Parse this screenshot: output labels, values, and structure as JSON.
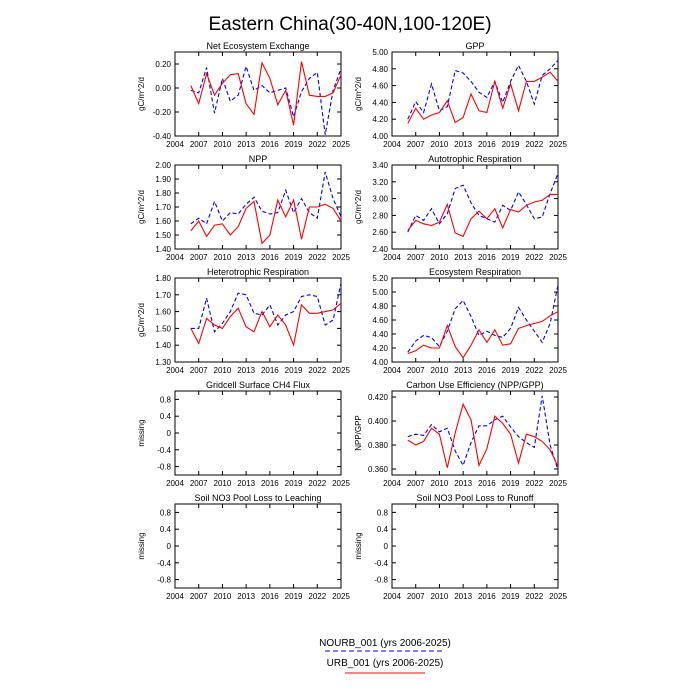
{
  "figure": {
    "title": "Eastern China(30-40N,100-120E)",
    "legend": [
      {
        "label": "NOURB_001 (yrs 2006-2025)",
        "color": "#0000ff",
        "dash": true
      },
      {
        "label": "URB_001 (yrs 2006-2025)",
        "color": "#ff0000",
        "dash": false
      }
    ]
  },
  "chart_data": [
    {
      "type": "line",
      "title": "Net Ecosystem Exchange",
      "ylabel": "gC/m^2/d",
      "xlim": [
        2004,
        2025
      ],
      "ylim": [
        -0.4,
        0.3
      ],
      "xticks": [
        2004,
        2007,
        2010,
        2013,
        2016,
        2019,
        2022,
        2025
      ],
      "yticks": [
        -0.4,
        -0.2,
        0.0,
        0.2
      ],
      "ytick_labels": [
        "-0.40",
        "-0.20",
        "0.00",
        "0.20"
      ],
      "x": [
        2006,
        2007,
        2008,
        2009,
        2010,
        2011,
        2012,
        2013,
        2014,
        2015,
        2016,
        2017,
        2018,
        2019,
        2020,
        2021,
        2022,
        2023,
        2024,
        2025
      ],
      "series": [
        {
          "name": "NOURB_001 (yrs 2006-2025)",
          "color": "#0000ff",
          "dash": true,
          "values": [
            -0.02,
            -0.04,
            0.17,
            -0.21,
            0.08,
            -0.11,
            -0.06,
            0.18,
            -0.02,
            0.02,
            -0.04,
            -0.02,
            0.0,
            -0.24,
            -0.03,
            0.08,
            0.13,
            -0.39,
            -0.02,
            0.16
          ]
        },
        {
          "name": "URB_001 (yrs 2006-2025)",
          "color": "#ff0000",
          "dash": false,
          "values": [
            0.02,
            -0.13,
            0.12,
            -0.06,
            0.04,
            0.11,
            0.12,
            -0.13,
            -0.22,
            0.21,
            0.08,
            -0.14,
            -0.02,
            -0.31,
            0.22,
            -0.06,
            -0.07,
            -0.07,
            -0.04,
            0.11
          ]
        }
      ]
    },
    {
      "type": "line",
      "title": "GPP",
      "ylabel": "gC/m^2/d",
      "xlim": [
        2004,
        2025
      ],
      "ylim": [
        4.0,
        5.0
      ],
      "xticks": [
        2004,
        2007,
        2010,
        2013,
        2016,
        2019,
        2022,
        2025
      ],
      "yticks": [
        4.0,
        4.2,
        4.4,
        4.6,
        4.8,
        5.0
      ],
      "ytick_labels": [
        "4.00",
        "4.20",
        "4.40",
        "4.60",
        "4.80",
        "5.00"
      ],
      "x": [
        2006,
        2007,
        2008,
        2009,
        2010,
        2011,
        2012,
        2013,
        2014,
        2015,
        2016,
        2017,
        2018,
        2019,
        2020,
        2021,
        2022,
        2023,
        2024,
        2025
      ],
      "series": [
        {
          "name": "NOURB_001 (yrs 2006-2025)",
          "color": "#0000ff",
          "dash": true,
          "values": [
            4.2,
            4.41,
            4.28,
            4.62,
            4.3,
            4.35,
            4.78,
            4.75,
            4.65,
            4.52,
            4.46,
            4.65,
            4.4,
            4.65,
            4.84,
            4.65,
            4.38,
            4.72,
            4.8,
            4.9
          ]
        },
        {
          "name": "URB_001 (yrs 2006-2025)",
          "color": "#ff0000",
          "dash": false,
          "values": [
            4.15,
            4.33,
            4.2,
            4.25,
            4.28,
            4.42,
            4.16,
            4.22,
            4.5,
            4.3,
            4.28,
            4.65,
            4.33,
            4.62,
            4.3,
            4.65,
            4.65,
            4.7,
            4.76,
            4.65
          ]
        }
      ]
    },
    {
      "type": "line",
      "title": "NPP",
      "ylabel": "gC/m^2/d",
      "xlim": [
        2004,
        2025
      ],
      "ylim": [
        1.4,
        2.0
      ],
      "xticks": [
        2004,
        2007,
        2010,
        2013,
        2016,
        2019,
        2022,
        2025
      ],
      "yticks": [
        1.4,
        1.5,
        1.6,
        1.7,
        1.8,
        1.9,
        2.0
      ],
      "ytick_labels": [
        "1.40",
        "1.50",
        "1.60",
        "1.70",
        "1.80",
        "1.90",
        "2.00"
      ],
      "x": [
        2006,
        2007,
        2008,
        2009,
        2010,
        2011,
        2012,
        2013,
        2014,
        2015,
        2016,
        2017,
        2018,
        2019,
        2020,
        2021,
        2022,
        2023,
        2024,
        2025
      ],
      "series": [
        {
          "name": "NOURB_001 (yrs 2006-2025)",
          "color": "#0000ff",
          "dash": true,
          "values": [
            1.58,
            1.62,
            1.58,
            1.74,
            1.6,
            1.66,
            1.65,
            1.72,
            1.77,
            1.67,
            1.65,
            1.66,
            1.82,
            1.66,
            1.76,
            1.66,
            1.62,
            1.95,
            1.76,
            1.63
          ]
        },
        {
          "name": "URB_001 (yrs 2006-2025)",
          "color": "#ff0000",
          "dash": false,
          "values": [
            1.53,
            1.6,
            1.49,
            1.57,
            1.58,
            1.5,
            1.56,
            1.69,
            1.74,
            1.44,
            1.5,
            1.75,
            1.63,
            1.75,
            1.47,
            1.7,
            1.7,
            1.72,
            1.69,
            1.6
          ]
        }
      ]
    },
    {
      "type": "line",
      "title": "Autotrophic Respiration",
      "ylabel": "gC/m^2/d",
      "xlim": [
        2004,
        2025
      ],
      "ylim": [
        2.4,
        3.4
      ],
      "xticks": [
        2004,
        2007,
        2010,
        2013,
        2016,
        2019,
        2022,
        2025
      ],
      "yticks": [
        2.4,
        2.6,
        2.8,
        3.0,
        3.2,
        3.4
      ],
      "ytick_labels": [
        "2.40",
        "2.60",
        "2.80",
        "3.00",
        "3.20",
        "3.40"
      ],
      "x": [
        2006,
        2007,
        2008,
        2009,
        2010,
        2011,
        2012,
        2013,
        2014,
        2015,
        2016,
        2017,
        2018,
        2019,
        2020,
        2021,
        2022,
        2023,
        2024,
        2025
      ],
      "series": [
        {
          "name": "NOURB_001 (yrs 2006-2025)",
          "color": "#0000ff",
          "dash": true,
          "values": [
            2.6,
            2.8,
            2.74,
            2.88,
            2.7,
            2.82,
            3.12,
            3.16,
            2.95,
            2.8,
            2.76,
            2.72,
            2.92,
            2.86,
            3.08,
            2.93,
            2.76,
            2.78,
            3.06,
            3.3
          ]
        },
        {
          "name": "URB_001 (yrs 2006-2025)",
          "color": "#ff0000",
          "dash": false,
          "values": [
            2.62,
            2.74,
            2.7,
            2.68,
            2.72,
            2.93,
            2.59,
            2.55,
            2.76,
            2.85,
            2.76,
            2.88,
            2.65,
            2.87,
            2.84,
            2.92,
            2.96,
            2.98,
            3.05,
            3.05
          ]
        }
      ]
    },
    {
      "type": "line",
      "title": "Heterotrophic Respiration",
      "ylabel": "gC/m^2/d",
      "xlim": [
        2004,
        2025
      ],
      "ylim": [
        1.3,
        1.8
      ],
      "xticks": [
        2004,
        2007,
        2010,
        2013,
        2016,
        2019,
        2022,
        2025
      ],
      "yticks": [
        1.3,
        1.4,
        1.5,
        1.6,
        1.7,
        1.8
      ],
      "ytick_labels": [
        "1.30",
        "1.40",
        "1.50",
        "1.60",
        "1.70",
        "1.80"
      ],
      "x": [
        2006,
        2007,
        2008,
        2009,
        2010,
        2011,
        2012,
        2013,
        2014,
        2015,
        2016,
        2017,
        2018,
        2019,
        2020,
        2021,
        2022,
        2023,
        2024,
        2025
      ],
      "series": [
        {
          "name": "NOURB_001 (yrs 2006-2025)",
          "color": "#0000ff",
          "dash": true,
          "values": [
            1.5,
            1.5,
            1.68,
            1.48,
            1.53,
            1.6,
            1.71,
            1.7,
            1.59,
            1.58,
            1.64,
            1.52,
            1.58,
            1.6,
            1.69,
            1.7,
            1.69,
            1.52,
            1.55,
            1.77
          ]
        },
        {
          "name": "URB_001 (yrs 2006-2025)",
          "color": "#ff0000",
          "dash": false,
          "values": [
            1.5,
            1.41,
            1.56,
            1.52,
            1.5,
            1.57,
            1.62,
            1.51,
            1.48,
            1.6,
            1.51,
            1.58,
            1.52,
            1.4,
            1.64,
            1.59,
            1.59,
            1.6,
            1.61,
            1.65
          ]
        }
      ]
    },
    {
      "type": "line",
      "title": "Ecosystem Respiration",
      "ylabel": "",
      "xlim": [
        2004,
        2025
      ],
      "ylim": [
        4.0,
        5.2
      ],
      "xticks": [
        2004,
        2007,
        2010,
        2013,
        2016,
        2019,
        2022,
        2025
      ],
      "yticks": [
        4.0,
        4.2,
        4.4,
        4.6,
        4.8,
        5.0,
        5.2
      ],
      "ytick_labels": [
        "4.00",
        "4.20",
        "4.40",
        "4.60",
        "4.80",
        "5.00",
        "5.20"
      ],
      "x": [
        2006,
        2007,
        2008,
        2009,
        2010,
        2011,
        2012,
        2013,
        2014,
        2015,
        2016,
        2017,
        2018,
        2019,
        2020,
        2021,
        2022,
        2023,
        2024,
        2025
      ],
      "series": [
        {
          "name": "NOURB_001 (yrs 2006-2025)",
          "color": "#0000ff",
          "dash": true,
          "values": [
            4.14,
            4.3,
            4.38,
            4.35,
            4.22,
            4.44,
            4.76,
            4.88,
            4.65,
            4.38,
            4.44,
            4.38,
            4.35,
            4.48,
            4.78,
            4.6,
            4.44,
            4.28,
            4.55,
            5.1
          ]
        },
        {
          "name": "URB_001 (yrs 2006-2025)",
          "color": "#ff0000",
          "dash": false,
          "values": [
            4.12,
            4.16,
            4.24,
            4.2,
            4.2,
            4.52,
            4.22,
            4.06,
            4.24,
            4.46,
            4.28,
            4.46,
            4.24,
            4.26,
            4.48,
            4.52,
            4.55,
            4.58,
            4.66,
            4.72
          ]
        }
      ]
    },
    {
      "type": "line",
      "title": "Gridcell Surface CH4 Flux",
      "ylabel": "missing",
      "xlim": [
        2004,
        2025
      ],
      "ylim": [
        -1.0,
        1.0
      ],
      "xticks": [
        2004,
        2007,
        2010,
        2013,
        2016,
        2019,
        2022,
        2025
      ],
      "yticks": [
        -0.8,
        -0.4,
        0.0,
        0.4,
        0.8
      ],
      "ytick_labels": [
        "-0.8",
        "-0.4",
        "0",
        "0.4",
        "0.8"
      ],
      "x": [],
      "series": []
    },
    {
      "type": "line",
      "title": "Carbon Use Efficiency (NPP/GPP)",
      "ylabel": "NPP/GPP",
      "xlim": [
        2004,
        2025
      ],
      "ylim": [
        0.355,
        0.425
      ],
      "xticks": [
        2004,
        2007,
        2010,
        2013,
        2016,
        2019,
        2022,
        2025
      ],
      "yticks": [
        0.36,
        0.38,
        0.4,
        0.42
      ],
      "ytick_labels": [
        "0.360",
        "0.380",
        "0.400",
        "0.420"
      ],
      "x": [
        2006,
        2007,
        2008,
        2009,
        2010,
        2011,
        2012,
        2013,
        2014,
        2015,
        2016,
        2017,
        2018,
        2019,
        2020,
        2021,
        2022,
        2023,
        2024,
        2025
      ],
      "series": [
        {
          "name": "NOURB_001 (yrs 2006-2025)",
          "color": "#0000ff",
          "dash": true,
          "values": [
            0.387,
            0.389,
            0.388,
            0.397,
            0.391,
            0.394,
            0.375,
            0.363,
            0.382,
            0.396,
            0.396,
            0.401,
            0.404,
            0.395,
            0.387,
            0.382,
            0.378,
            0.421,
            0.38,
            0.359
          ]
        },
        {
          "name": "URB_001 (yrs 2006-2025)",
          "color": "#ff0000",
          "dash": false,
          "values": [
            0.384,
            0.38,
            0.383,
            0.394,
            0.389,
            0.361,
            0.39,
            0.414,
            0.401,
            0.363,
            0.377,
            0.404,
            0.398,
            0.389,
            0.365,
            0.389,
            0.387,
            0.383,
            0.376,
            0.362
          ]
        }
      ]
    },
    {
      "type": "line",
      "title": "Soil NO3 Pool Loss to Leaching",
      "ylabel": "missing",
      "xlim": [
        2004,
        2025
      ],
      "ylim": [
        -1.0,
        1.0
      ],
      "xticks": [
        2004,
        2007,
        2010,
        2013,
        2016,
        2019,
        2022,
        2025
      ],
      "yticks": [
        -0.8,
        -0.4,
        0.0,
        0.4,
        0.8
      ],
      "ytick_labels": [
        "-0.8",
        "-0.4",
        "0",
        "0.4",
        "0.8"
      ],
      "x": [],
      "series": []
    },
    {
      "type": "line",
      "title": "Soil NO3 Pool Loss to Runoff",
      "ylabel": "missing",
      "xlim": [
        2004,
        2025
      ],
      "ylim": [
        -1.0,
        1.0
      ],
      "xticks": [
        2004,
        2007,
        2010,
        2013,
        2016,
        2019,
        2022,
        2025
      ],
      "yticks": [
        -0.8,
        -0.4,
        0.0,
        0.4,
        0.8
      ],
      "ytick_labels": [
        "-0.8",
        "-0.4",
        "0",
        "0.4",
        "0.8"
      ],
      "x": [],
      "series": []
    }
  ]
}
